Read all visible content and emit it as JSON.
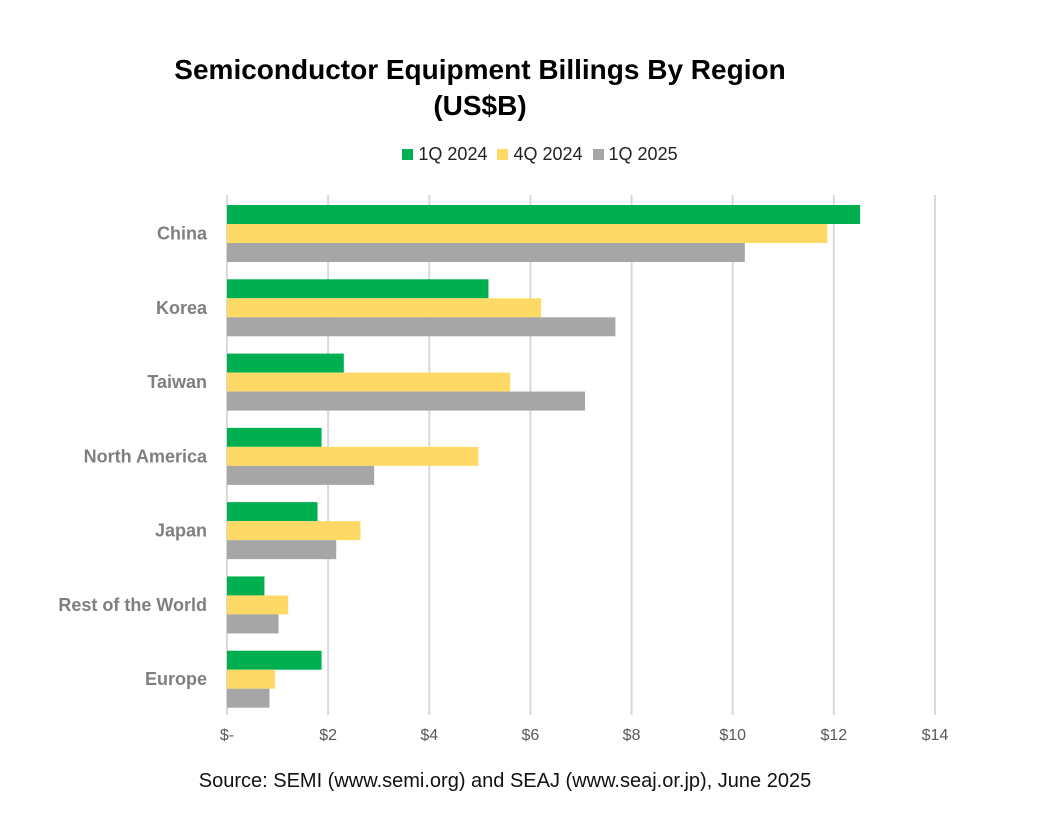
{
  "chart_data": {
    "type": "bar",
    "orientation": "horizontal",
    "title": "Semiconductor Equipment Billings By Region",
    "subtitle": "(US$B)",
    "categories": [
      "China",
      "Korea",
      "Taiwan",
      "North America",
      "Japan",
      "Rest of the World",
      "Europe"
    ],
    "series": [
      {
        "name": "1Q 2024",
        "color": "#00b050",
        "values": [
          12.52,
          5.17,
          2.31,
          1.87,
          1.79,
          0.74,
          1.87
        ]
      },
      {
        "name": "4Q 2024",
        "color": "#ffd966",
        "values": [
          11.87,
          6.21,
          5.6,
          4.97,
          2.64,
          1.21,
          0.95
        ]
      },
      {
        "name": "1Q 2025",
        "color": "#a6a6a6",
        "values": [
          10.24,
          7.68,
          7.08,
          2.91,
          2.16,
          1.02,
          0.84
        ]
      }
    ],
    "xlim": [
      0,
      14
    ],
    "xticks": [
      0,
      2,
      4,
      6,
      8,
      10,
      12,
      14
    ],
    "xtick_labels": [
      "$-",
      "$2",
      "$4",
      "$6",
      "$8",
      "$10",
      "$12",
      "$14"
    ],
    "xlabel": "",
    "ylabel": "",
    "grid": "vertical",
    "legend": "top-center",
    "source": "Source: SEMI (www.semi.org) and SEAJ (www.seaj.or.jp), June 2025"
  }
}
